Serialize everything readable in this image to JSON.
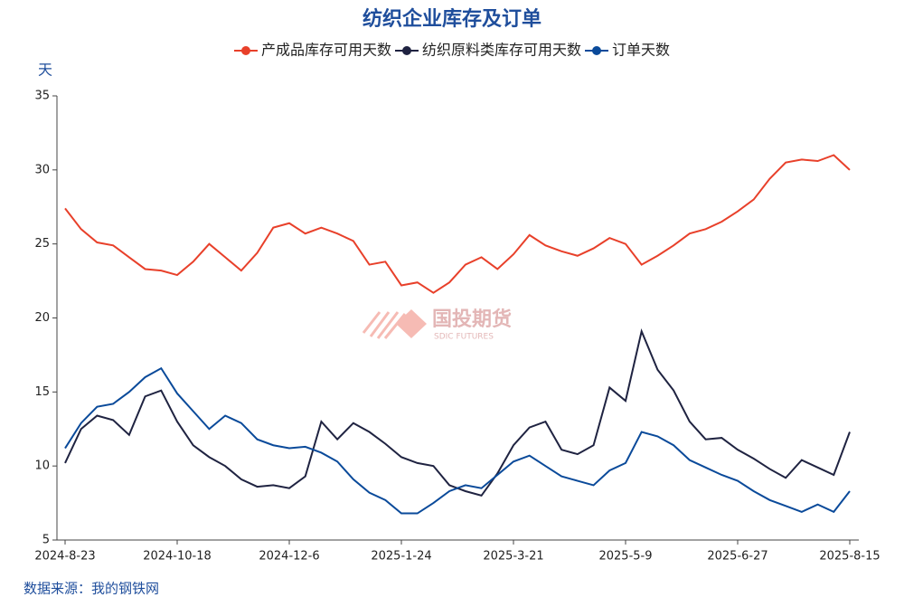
{
  "chart_data": {
    "type": "line",
    "title": "纺织企业库存及订单",
    "y_unit": "天",
    "source": "数据来源：我的钢铁网",
    "watermark": {
      "name": "国投期货",
      "subname": "SDIC FUTURES"
    },
    "categories": [
      "2024-8-23",
      null,
      null,
      null,
      null,
      null,
      null,
      "2024-10-18",
      null,
      null,
      null,
      null,
      null,
      null,
      "2024-12-6",
      null,
      null,
      null,
      null,
      null,
      null,
      "2025-1-24",
      null,
      null,
      null,
      null,
      null,
      null,
      "2025-3-21",
      null,
      null,
      null,
      null,
      null,
      null,
      "2025-5-9",
      null,
      null,
      null,
      null,
      null,
      null,
      "2025-6-27",
      null,
      null,
      null,
      null,
      null,
      null,
      "2025-8-15"
    ],
    "ylim": [
      5,
      35
    ],
    "yticks": [
      5,
      10,
      15,
      20,
      25,
      30,
      35
    ],
    "grid": false,
    "legend": "top",
    "series": [
      {
        "name": "产成品库存可用天数",
        "color": "#e8402a",
        "values": [
          27.4,
          26.0,
          25.1,
          24.9,
          24.1,
          23.3,
          23.2,
          22.9,
          23.8,
          25.0,
          24.1,
          23.2,
          24.4,
          26.1,
          26.4,
          25.7,
          26.1,
          25.7,
          25.2,
          23.6,
          23.8,
          22.2,
          22.4,
          21.7,
          22.4,
          23.6,
          24.1,
          23.3,
          24.3,
          25.6,
          24.9,
          24.5,
          24.2,
          24.7,
          25.4,
          25.0,
          23.6,
          24.2,
          24.9,
          25.7,
          26.0,
          26.5,
          27.2,
          28.0,
          29.4,
          30.5,
          30.7,
          30.6,
          31.0,
          30.0
        ]
      },
      {
        "name": "纺织原料类库存可用天数",
        "color": "#1f2341",
        "values": [
          10.2,
          12.5,
          13.4,
          13.1,
          12.1,
          14.7,
          15.1,
          13.0,
          11.4,
          10.6,
          10.0,
          9.1,
          8.6,
          8.7,
          8.5,
          9.3,
          13.0,
          11.8,
          12.9,
          12.3,
          11.5,
          10.6,
          10.2,
          10.0,
          8.7,
          8.3,
          8.0,
          9.5,
          11.4,
          12.6,
          13.0,
          11.1,
          10.8,
          11.4,
          15.3,
          14.4,
          19.1,
          16.5,
          15.1,
          13.0,
          11.8,
          11.9,
          11.1,
          10.5,
          9.8,
          9.2,
          10.4,
          9.9,
          9.4,
          12.3
        ]
      },
      {
        "name": "订单天数",
        "color": "#0a4a9a",
        "values": [
          11.2,
          12.9,
          14.0,
          14.2,
          15.0,
          16.0,
          16.6,
          14.9,
          13.7,
          12.5,
          13.4,
          12.9,
          11.8,
          11.4,
          11.2,
          11.3,
          10.9,
          10.3,
          9.1,
          8.2,
          7.7,
          6.8,
          6.8,
          7.5,
          8.3,
          8.7,
          8.5,
          9.4,
          10.3,
          10.7,
          10.0,
          9.3,
          9.0,
          8.7,
          9.7,
          10.2,
          12.3,
          12.0,
          11.4,
          10.4,
          9.9,
          9.4,
          9.0,
          8.3,
          7.7,
          7.3,
          6.9,
          7.4,
          6.9,
          8.3
        ]
      }
    ]
  }
}
